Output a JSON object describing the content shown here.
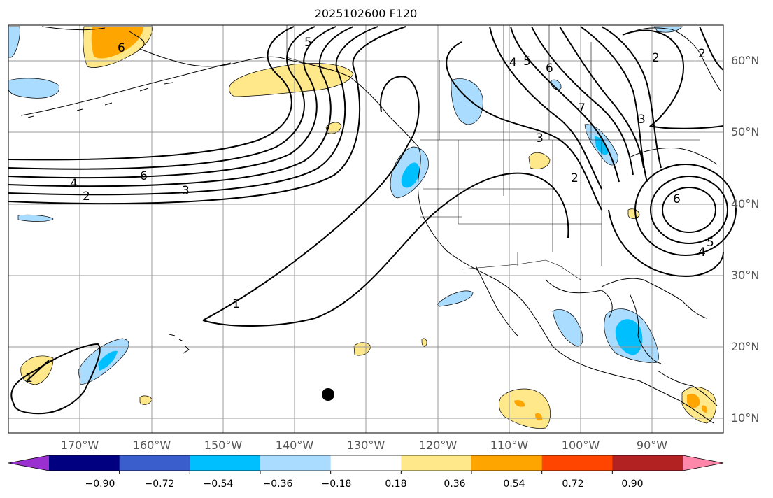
{
  "title": "2025102600 F120",
  "map": {
    "lat_labels": [
      "60°N",
      "50°N",
      "40°N",
      "30°N",
      "20°N",
      "10°N"
    ],
    "lon_labels": [
      "170°W",
      "160°W",
      "150°W",
      "140°W",
      "130°W",
      "120°W",
      "110°W",
      "100°W",
      "90°W"
    ],
    "contour_labels": {
      "pacific_6": "6",
      "pacific_4": "4",
      "pacific_3": "3",
      "pacific_2": "2",
      "gulf_5": "5",
      "trough_1": "1",
      "hawaii_1": "1",
      "alaska_6": "6",
      "canada_4": "4",
      "canada_5": "5",
      "canada_6": "6",
      "canada_7": "7",
      "plains_3": "3",
      "plains_2": "2",
      "east_3": "3",
      "ne_2a": "2",
      "ne_2b": "2",
      "low_6": "6",
      "low_4": "4",
      "low_5": "5"
    },
    "marker": "black-dot"
  },
  "colorbar": {
    "ticks": [
      "−0.90",
      "−0.72",
      "−0.54",
      "−0.36",
      "−0.18",
      "0.18",
      "0.36",
      "0.54",
      "0.72",
      "0.90"
    ],
    "colors": [
      "#9b30d0",
      "#000080",
      "#3a5fcd",
      "#00bfff",
      "#aadcff",
      "#ffffff",
      "#ffe88a",
      "#ffa500",
      "#ff4500",
      "#b22222",
      "#ff88aa"
    ]
  }
}
